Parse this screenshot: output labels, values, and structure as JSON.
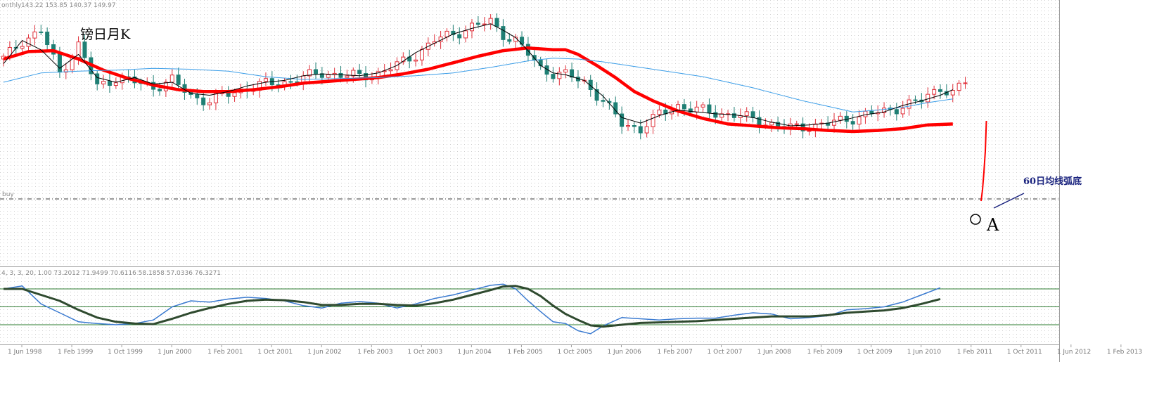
{
  "header": {
    "period": "onthly",
    "ohlc": "143.22 153.85 140.37 149.97",
    "buy_label": "buy",
    "indicator_values": "4, 3, 3, 20, 1.00 73.2012 71.9499 70.6116 58.1858 57.0336 76.3271"
  },
  "title": "镑日月K",
  "annotations": {
    "arc_bottom": "60日均线弧底",
    "point_label": "A",
    "point_marker": "O"
  },
  "chart_data": [
    {
      "type": "candlestick",
      "title": "镑日月K",
      "x_ticks": [
        "1 Jun 1998",
        "1 Feb 1999",
        "1 Oct 1999",
        "1 Jun 2000",
        "1 Feb 2001",
        "1 Oct 2001",
        "1 Jun 2002",
        "1 Feb 2003",
        "1 Oct 2003",
        "1 Jun 2004",
        "1 Feb 2005",
        "1 Oct 2005",
        "1 Jun 2006",
        "1 Feb 2007",
        "1 Oct 2007",
        "1 Jun 2008",
        "1 Feb 2009",
        "1 Oct 2009",
        "1 Jun 2010",
        "1 Feb 2011",
        "1 Oct 2011",
        "1 Jun 2012",
        "1 Feb 2013"
      ],
      "price_close_path": [
        [
          0,
          205
        ],
        [
          3,
          225
        ],
        [
          6,
          235
        ],
        [
          9,
          190
        ],
        [
          12,
          220
        ],
        [
          15,
          175
        ],
        [
          18,
          185
        ],
        [
          21,
          180
        ],
        [
          24,
          175
        ],
        [
          27,
          182
        ],
        [
          30,
          165
        ],
        [
          33,
          160
        ],
        [
          36,
          167
        ],
        [
          39,
          174
        ],
        [
          42,
          178
        ],
        [
          45,
          180
        ],
        [
          48,
          185
        ],
        [
          51,
          190
        ],
        [
          54,
          188
        ],
        [
          57,
          186
        ],
        [
          60,
          190
        ],
        [
          63,
          198
        ],
        [
          66,
          210
        ],
        [
          69,
          225
        ],
        [
          72,
          232
        ],
        [
          75,
          240
        ],
        [
          78,
          245
        ],
        [
          80,
          232
        ],
        [
          82,
          225
        ],
        [
          84,
          210
        ],
        [
          86,
          195
        ],
        [
          88,
          190
        ],
        [
          90,
          188
        ],
        [
          93,
          180
        ],
        [
          96,
          160
        ],
        [
          99,
          135
        ],
        [
          102,
          130
        ],
        [
          105,
          145
        ],
        [
          108,
          155
        ],
        [
          111,
          150
        ],
        [
          114,
          147
        ],
        [
          117,
          145
        ],
        [
          120,
          140
        ],
        [
          123,
          135
        ],
        [
          126,
          130
        ],
        [
          129,
          133
        ],
        [
          132,
          135
        ],
        [
          135,
          140
        ],
        [
          138,
          145
        ],
        [
          141,
          148
        ],
        [
          144,
          155
        ],
        [
          147,
          160
        ],
        [
          150,
          175
        ],
        [
          152,
          168
        ],
        [
          154,
          180
        ]
      ],
      "series": [
        {
          "name": "",
          "color": "#ff0000",
          "path": [
            [
              0,
              205
            ],
            [
              4,
              213
            ],
            [
              8,
              214
            ],
            [
              12,
              205
            ],
            [
              16,
              193
            ],
            [
              20,
              184
            ],
            [
              24,
              177
            ],
            [
              28,
              172
            ],
            [
              32,
              170
            ],
            [
              36,
              170
            ],
            [
              40,
              172
            ],
            [
              44,
              175
            ],
            [
              48,
              179
            ],
            [
              52,
              181
            ],
            [
              56,
              183
            ],
            [
              60,
              185
            ],
            [
              64,
              189
            ],
            [
              68,
              194
            ],
            [
              72,
              201
            ],
            [
              76,
              208
            ],
            [
              80,
              214
            ],
            [
              84,
              217
            ],
            [
              86,
              216
            ],
            [
              88,
              215
            ],
            [
              90,
              215
            ],
            [
              92,
              210
            ],
            [
              95,
              198
            ],
            [
              98,
              185
            ],
            [
              101,
              170
            ],
            [
              104,
              160
            ],
            [
              108,
              149
            ],
            [
              112,
              141
            ],
            [
              116,
              135
            ],
            [
              120,
              133
            ],
            [
              124,
              131
            ],
            [
              128,
              130
            ],
            [
              132,
              128
            ],
            [
              136,
              127
            ],
            [
              140,
              128
            ],
            [
              144,
              130
            ],
            [
              148,
              134
            ],
            [
              152,
              135
            ]
          ]
        },
        {
          "name": "",
          "color": "#3c9ee8",
          "path": [
            [
              0,
              180
            ],
            [
              6,
              190
            ],
            [
              12,
              192
            ],
            [
              18,
              193
            ],
            [
              24,
              195
            ],
            [
              30,
              194
            ],
            [
              36,
              192
            ],
            [
              42,
              186
            ],
            [
              48,
              183
            ],
            [
              54,
              184
            ],
            [
              60,
              185
            ],
            [
              66,
              187
            ],
            [
              72,
              190
            ],
            [
              78,
              196
            ],
            [
              84,
              203
            ],
            [
              88,
              206
            ],
            [
              92,
              205
            ],
            [
              96,
              202
            ],
            [
              100,
              198
            ],
            [
              104,
              194
            ],
            [
              108,
              190
            ],
            [
              112,
              186
            ],
            [
              116,
              180
            ],
            [
              120,
              174
            ],
            [
              124,
              167
            ],
            [
              128,
              160
            ],
            [
              132,
              154
            ],
            [
              136,
              148
            ],
            [
              140,
              150
            ],
            [
              144,
              153
            ],
            [
              148,
              158
            ],
            [
              152,
              162
            ]
          ]
        },
        {
          "name": "",
          "color": "#000000",
          "path": [
            [
              0,
              200
            ],
            [
              3,
              225
            ],
            [
              6,
              215
            ],
            [
              9,
              195
            ],
            [
              12,
              210
            ],
            [
              15,
              185
            ],
            [
              18,
              180
            ],
            [
              21,
              185
            ],
            [
              24,
              178
            ],
            [
              27,
              180
            ],
            [
              30,
              168
            ],
            [
              33,
              166
            ],
            [
              36,
              170
            ],
            [
              39,
              176
            ],
            [
              42,
              180
            ],
            [
              45,
              182
            ],
            [
              48,
              187
            ],
            [
              51,
              189
            ],
            [
              54,
              188
            ],
            [
              57,
              187
            ],
            [
              60,
              190
            ],
            [
              63,
              198
            ],
            [
              66,
              212
            ],
            [
              69,
              222
            ],
            [
              72,
              232
            ],
            [
              75,
              238
            ],
            [
              78,
              243
            ],
            [
              80,
              236
            ],
            [
              82,
              228
            ],
            [
              84,
              214
            ],
            [
              86,
              198
            ],
            [
              88,
              190
            ],
            [
              90,
              188
            ],
            [
              93,
              182
            ],
            [
              96,
              165
            ],
            [
              99,
              142
            ],
            [
              102,
              136
            ],
            [
              105,
              144
            ],
            [
              108,
              150
            ],
            [
              111,
              148
            ],
            [
              114,
              146
            ],
            [
              117,
              145
            ],
            [
              120,
              142
            ],
            [
              123,
              137
            ],
            [
              126,
              133
            ],
            [
              129,
              134
            ],
            [
              132,
              136
            ],
            [
              135,
              140
            ],
            [
              138,
              145
            ],
            [
              141,
              148
            ],
            [
              144,
              155
            ],
            [
              147,
              160
            ],
            [
              150,
              166
            ],
            [
              152,
              172
            ]
          ]
        }
      ],
      "projection_line_color": "#ff0000"
    },
    {
      "type": "line",
      "title": "",
      "levels": [
        80,
        50,
        20
      ],
      "series": [
        {
          "name": "",
          "color": "#3a7ad0",
          "path": [
            [
              0,
              80
            ],
            [
              3,
              85
            ],
            [
              6,
              55
            ],
            [
              9,
              40
            ],
            [
              12,
              25
            ],
            [
              15,
              22
            ],
            [
              18,
              20
            ],
            [
              21,
              22
            ],
            [
              24,
              28
            ],
            [
              27,
              50
            ],
            [
              30,
              60
            ],
            [
              33,
              58
            ],
            [
              36,
              63
            ],
            [
              39,
              66
            ],
            [
              42,
              64
            ],
            [
              45,
              60
            ],
            [
              48,
              52
            ],
            [
              51,
              48
            ],
            [
              54,
              56
            ],
            [
              57,
              59
            ],
            [
              60,
              56
            ],
            [
              63,
              48
            ],
            [
              66,
              55
            ],
            [
              69,
              64
            ],
            [
              72,
              70
            ],
            [
              75,
              78
            ],
            [
              78,
              86
            ],
            [
              80,
              88
            ],
            [
              82,
              80
            ],
            [
              84,
              60
            ],
            [
              86,
              42
            ],
            [
              88,
              25
            ],
            [
              90,
              22
            ],
            [
              92,
              10
            ],
            [
              94,
              5
            ],
            [
              96,
              18
            ],
            [
              99,
              32
            ],
            [
              102,
              30
            ],
            [
              105,
              28
            ],
            [
              108,
              30
            ],
            [
              111,
              31
            ],
            [
              114,
              31
            ],
            [
              117,
              36
            ],
            [
              120,
              40
            ],
            [
              123,
              38
            ],
            [
              126,
              30
            ],
            [
              129,
              32
            ],
            [
              132,
              35
            ],
            [
              135,
              45
            ],
            [
              138,
              47
            ],
            [
              141,
              50
            ],
            [
              144,
              58
            ],
            [
              147,
              70
            ],
            [
              150,
              82
            ]
          ]
        },
        {
          "name": "",
          "color": "#2f4a2f",
          "path": [
            [
              0,
              80
            ],
            [
              3,
              80
            ],
            [
              6,
              70
            ],
            [
              9,
              60
            ],
            [
              12,
              45
            ],
            [
              15,
              32
            ],
            [
              18,
              25
            ],
            [
              21,
              22
            ],
            [
              24,
              21
            ],
            [
              27,
              30
            ],
            [
              30,
              40
            ],
            [
              33,
              48
            ],
            [
              36,
              55
            ],
            [
              39,
              60
            ],
            [
              42,
              62
            ],
            [
              45,
              61
            ],
            [
              48,
              58
            ],
            [
              51,
              53
            ],
            [
              54,
              53
            ],
            [
              57,
              55
            ],
            [
              60,
              55
            ],
            [
              63,
              53
            ],
            [
              66,
              52
            ],
            [
              69,
              56
            ],
            [
              72,
              62
            ],
            [
              75,
              70
            ],
            [
              78,
              78
            ],
            [
              80,
              84
            ],
            [
              82,
              85
            ],
            [
              84,
              80
            ],
            [
              86,
              68
            ],
            [
              88,
              52
            ],
            [
              90,
              38
            ],
            [
              92,
              28
            ],
            [
              94,
              19
            ],
            [
              96,
              17
            ],
            [
              99,
              20
            ],
            [
              102,
              23
            ],
            [
              105,
              24
            ],
            [
              108,
              25
            ],
            [
              111,
              26
            ],
            [
              114,
              28
            ],
            [
              117,
              30
            ],
            [
              120,
              32
            ],
            [
              123,
              34
            ],
            [
              126,
              34
            ],
            [
              129,
              34
            ],
            [
              132,
              36
            ],
            [
              135,
              40
            ],
            [
              138,
              42
            ],
            [
              141,
              44
            ],
            [
              144,
              48
            ],
            [
              147,
              55
            ],
            [
              150,
              63
            ]
          ]
        }
      ]
    }
  ]
}
